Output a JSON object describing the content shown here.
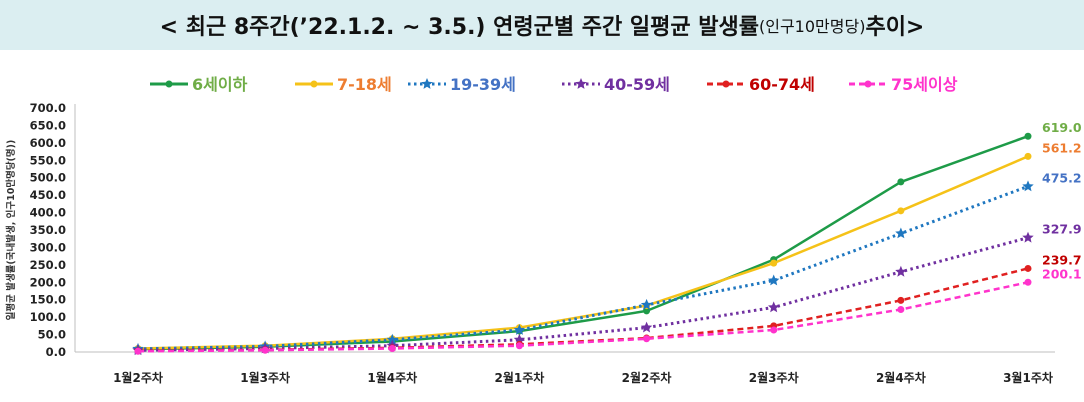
{
  "title": {
    "main": "< 최근 8주간(’22.1.2. ~ 3.5.) 연령군별 주간 일평균 발생률",
    "unit": "(인구10만명당)",
    "suffix": " 추이>"
  },
  "chart_data": {
    "type": "line",
    "title": "< 최근 8주간(’22.1.2. ~ 3.5.) 연령군별 주간 일평균 발생률(인구10만명당) 추이>",
    "ylabel": "일평균 발생률(국내발생, 인구10만명당(명))",
    "xlabel": "",
    "ylim": [
      0,
      700
    ],
    "yticks": [
      "0.0",
      "50.0",
      "100.0",
      "150.0",
      "200.0",
      "250.0",
      "300.0",
      "350.0",
      "400.0",
      "450.0",
      "500.0",
      "550.0",
      "600.0",
      "650.0",
      "700.0"
    ],
    "grid": false,
    "legend_position": "top",
    "categories": [
      "1월2주차",
      "1월3주차",
      "1월4주차",
      "2월1주차",
      "2월2주차",
      "2월3주차",
      "2월4주차",
      "3월1주차"
    ],
    "series": [
      {
        "name": "6세이하",
        "color": "#1e9b48",
        "label_color": "#70ad47",
        "dash": "solid",
        "marker": "circle",
        "values": [
          8,
          15,
          30,
          60,
          118,
          265,
          488,
          619.0
        ],
        "end_label": "619.0"
      },
      {
        "name": "7-18세",
        "color": "#f5c218",
        "label_color": "#ed7d31",
        "dash": "solid",
        "marker": "circle",
        "values": [
          10,
          18,
          38,
          70,
          133,
          255,
          405,
          561.2
        ],
        "end_label": "561.2"
      },
      {
        "name": "19-39세",
        "color": "#1f77c0",
        "label_color": "#4472c4",
        "dash": "dot",
        "marker": "star",
        "values": [
          9,
          16,
          35,
          63,
          135,
          205,
          340,
          475.2
        ],
        "end_label": "475.2"
      },
      {
        "name": "40-59세",
        "color": "#7030a0",
        "label_color": "#7030a0",
        "dash": "dot",
        "marker": "star",
        "values": [
          5,
          10,
          18,
          35,
          70,
          128,
          230,
          327.9
        ],
        "end_label": "327.9"
      },
      {
        "name": "60-74세",
        "color": "#e02020",
        "label_color": "#c00000",
        "dash": "dash",
        "marker": "circle",
        "values": [
          3,
          6,
          12,
          22,
          40,
          75,
          148,
          239.7
        ],
        "end_label": "239.7"
      },
      {
        "name": "75세이상",
        "color": "#ff33cc",
        "label_color": "#ff33cc",
        "dash": "dash",
        "marker": "circle",
        "values": [
          2,
          5,
          10,
          18,
          38,
          63,
          122,
          200.1
        ],
        "end_label": "200.1"
      }
    ]
  }
}
